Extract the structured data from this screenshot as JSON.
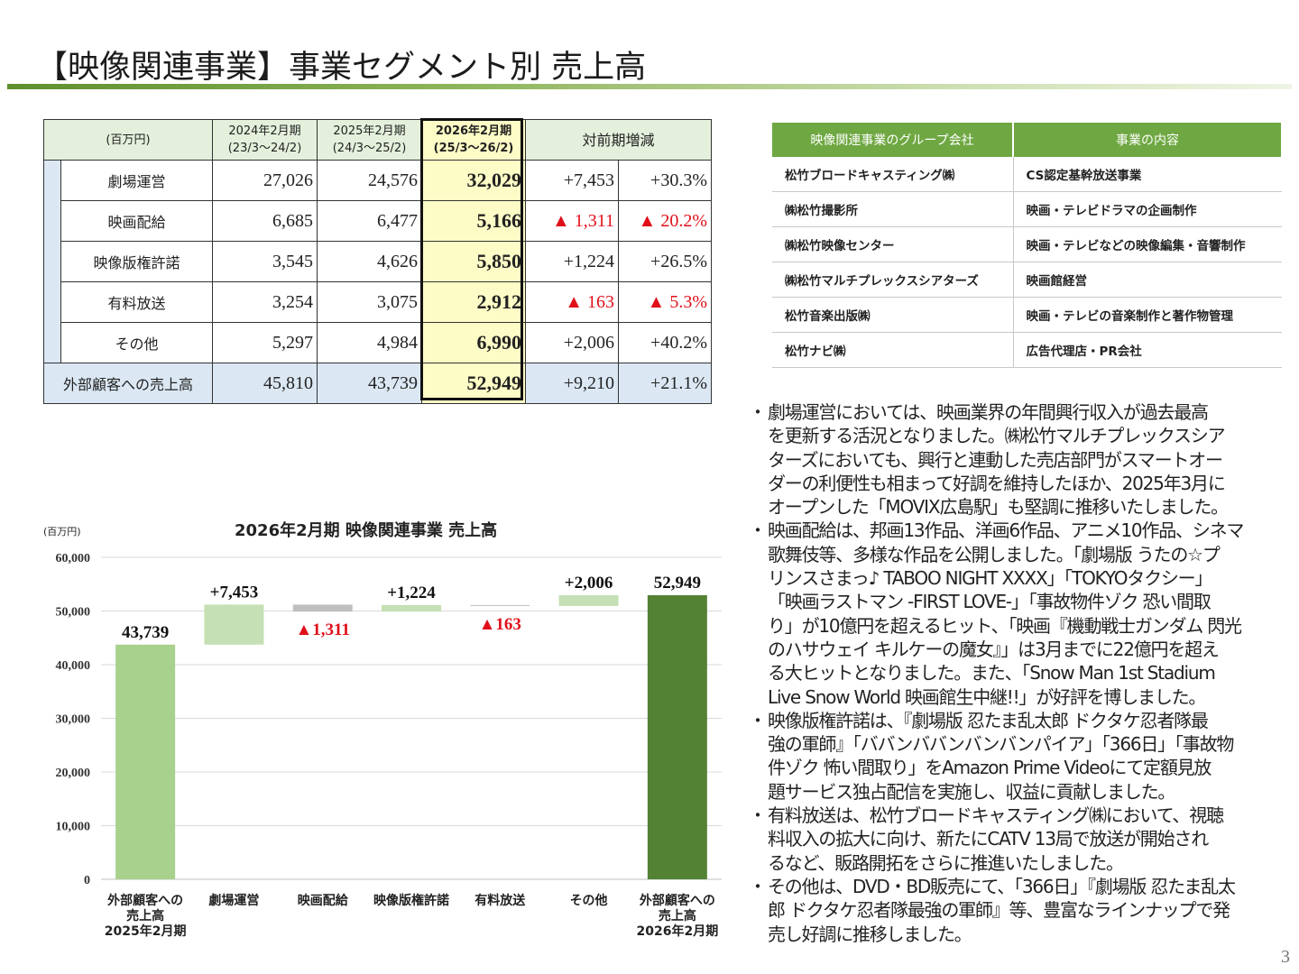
{
  "title": "【映像関連事業】事業セグメント別 売上高",
  "segment_table": {
    "unit": "(百万円)",
    "headers": [
      {
        "line1": "2024年2月期",
        "line2": "(23/3～24/2)"
      },
      {
        "line1": "2025年2月期",
        "line2": "(24/3～25/2)"
      },
      {
        "line1": "2026年2月期",
        "line2": "(25/3～26/2)"
      }
    ],
    "change_header": "対前期増減",
    "rows": [
      {
        "label": "劇場運営",
        "v2024": "27,026",
        "v2025": "24,576",
        "v2026": "32,029",
        "diff": "+7,453",
        "pct": "+30.3%"
      },
      {
        "label": "映画配給",
        "v2024": "6,685",
        "v2025": "6,477",
        "v2026": "5,166",
        "diff": "▲ 1,311",
        "pct": "▲ 20.2%"
      },
      {
        "label": "映像版権許諾",
        "v2024": "3,545",
        "v2025": "4,626",
        "v2026": "5,850",
        "diff": "+1,224",
        "pct": "+26.5%"
      },
      {
        "label": "有料放送",
        "v2024": "3,254",
        "v2025": "3,075",
        "v2026": "2,912",
        "diff": "▲ 163",
        "pct": "▲ 5.3%"
      },
      {
        "label": "その他",
        "v2024": "5,297",
        "v2025": "4,984",
        "v2026": "6,990",
        "diff": "+2,006",
        "pct": "+40.2%"
      }
    ],
    "total": {
      "label": "外部顧客への売上高",
      "v2024": "45,810",
      "v2025": "43,739",
      "v2026": "52,949",
      "diff": "+9,210",
      "pct": "+21.1%"
    }
  },
  "group_table": {
    "headers": [
      "映像関連事業のグループ会社",
      "事業の内容"
    ],
    "rows": [
      [
        "松竹ブロードキャスティング㈱",
        "CS認定基幹放送事業"
      ],
      [
        "㈱松竹撮影所",
        "映画・テレビドラマの企画制作"
      ],
      [
        "㈱松竹映像センター",
        "映画・テレビなどの映像編集・音響制作"
      ],
      [
        "㈱松竹マルチプレックスシアターズ",
        "映画館経営"
      ],
      [
        "松竹音楽出版㈱",
        "映画・テレビの音楽制作と著作物管理"
      ],
      [
        "松竹ナビ㈱",
        "広告代理店・PR会社"
      ]
    ]
  },
  "notes": [
    {
      "lines": [
        "劇場運営においては、映画業界の年間興行収入が過去最高",
        "を更新する活況となりました。㈱松竹マルチプレックスシア",
        "ターズにおいても、興行と連動した売店部門がスマートオー",
        "ダーの利便性も相まって好調を維持したほか、2025年3月に",
        "オープンした「MOVIX広島駅」も堅調に推移いたしました。"
      ]
    },
    {
      "lines": [
        "映画配給は、邦画13作品、洋画6作品、アニメ10作品、シネマ",
        "歌舞伎等、多様な作品を公開しました。「劇場版 うたの☆プ",
        "リンスさまっ♪ TABOO NIGHT XXXX」「TOKYOタクシー」",
        "「映画ラストマン -FIRST LOVE-」「事故物件ゾク 恐い間取",
        "り」が10億円を超えるヒット、「映画『機動戦士ガンダム 閃光",
        "のハサウェイ キルケーの魔女』」は3月までに22億円を超え",
        "る大ヒットとなりました。また、「Snow Man 1st Stadium",
        "Live Snow World 映画館生中継!!」が好評を博しました。"
      ]
    },
    {
      "lines": [
        "映像版権許諾は、『劇場版 忍たま乱太郎 ドクタケ忍者隊最",
        "強の軍師』「ババンババンバンバンパイア」「366日」「事故物",
        "件ゾク 怖い間取り」をAmazon Prime Videoにて定額見放",
        "題サービス独占配信を実施し、収益に貢献しました。"
      ]
    },
    {
      "lines": [
        "有料放送は、松竹ブロードキャスティング㈱において、視聴",
        "料収入の拡大に向け、新たにCATV 13局で放送が開始され",
        "るなど、販路開拓をさらに推進いたしました。"
      ]
    },
    {
      "lines": [
        "その他は、DVD・BD販売にて、「366日」『劇場版 忍たま乱太",
        "郎 ドクタケ忍者隊最強の軍師』等、豊富なラインナップで発",
        "売し好調に推移しました。"
      ]
    }
  ],
  "chart_data": {
    "type": "bar",
    "title": "2026年2月期 映像関連事業 売上高",
    "unit": "(百万円)",
    "ylim": [
      0,
      60000
    ],
    "yticks": [
      "0",
      "10,000",
      "20,000",
      "30,000",
      "40,000",
      "50,000",
      "60,000"
    ],
    "categories": [
      [
        "外部顧客への",
        "売上高",
        "2025年2月期"
      ],
      [
        "劇場運営"
      ],
      [
        "映画配給"
      ],
      [
        "映像版権許諾"
      ],
      [
        "有料放送"
      ],
      [
        "その他"
      ],
      [
        "外部顧客への",
        "売上高",
        "2026年2月期"
      ]
    ],
    "bars": [
      {
        "base": 0,
        "value": 43739,
        "label": "43,739",
        "kind": "total"
      },
      {
        "base": 43739,
        "value": 51192,
        "label": "+7,453",
        "kind": "up"
      },
      {
        "base": 49881,
        "value": 51192,
        "label": "▲1,311",
        "kind": "down"
      },
      {
        "base": 49881,
        "value": 51105,
        "label": "+1,224",
        "kind": "up"
      },
      {
        "base": 50942,
        "value": 51105,
        "label": "▲163",
        "kind": "down"
      },
      {
        "base": 50942,
        "value": 52948,
        "label": "+2,006",
        "kind": "up"
      },
      {
        "base": 0,
        "value": 52949,
        "label": "52,949",
        "kind": "final"
      }
    ],
    "colors": {
      "total": "#a9d18e",
      "up": "#c5e0b4",
      "down": "#bfbfbf",
      "final": "#548235",
      "negative_label": "#e0101a"
    },
    "grid": true
  },
  "page_number": "3"
}
